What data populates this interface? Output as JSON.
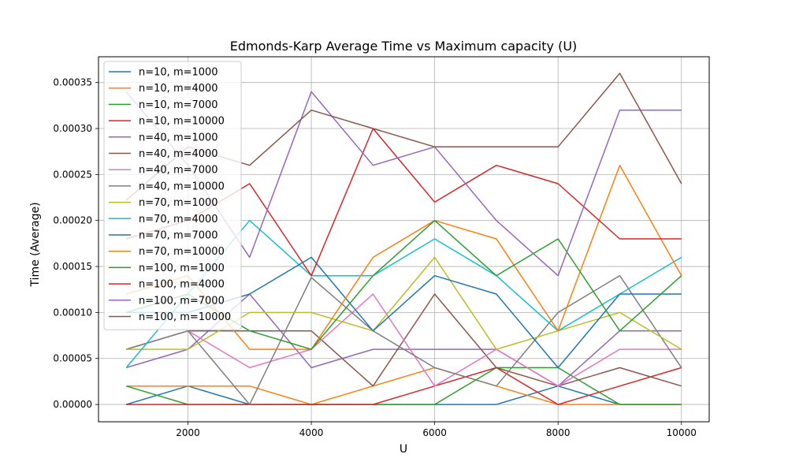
{
  "chart_data": {
    "type": "line",
    "title": "Edmonds-Karp Average Time vs Maximum capacity (U)",
    "xlabel": "U",
    "ylabel": "Time (Average)",
    "xlim": [
      550,
      10450
    ],
    "ylim": [
      -1.88e-05,
      0.000378
    ],
    "xticks": [
      2000,
      4000,
      6000,
      8000,
      10000
    ],
    "xtick_labels": [
      "2000",
      "4000",
      "6000",
      "8000",
      "10000"
    ],
    "yticks": [
      0,
      5e-05,
      0.0001,
      0.00015,
      0.0002,
      0.00025,
      0.0003,
      0.00035
    ],
    "ytick_labels": [
      "0.00000",
      "0.00005",
      "0.00010",
      "0.00015",
      "0.00020",
      "0.00025",
      "0.00030",
      "0.00035"
    ],
    "grid": true,
    "legend_position": "upper-left",
    "x": [
      1000,
      2000,
      3000,
      4000,
      5000,
      6000,
      7000,
      8000,
      9000,
      10000
    ],
    "series": [
      {
        "name": "n=10, m=1000",
        "color": "#1f77b4",
        "values": [
          0,
          2e-05,
          0,
          0,
          0,
          0,
          0,
          2e-05,
          0,
          0
        ]
      },
      {
        "name": "n=10, m=4000",
        "color": "#ff7f0e",
        "values": [
          2e-05,
          2e-05,
          2e-05,
          0,
          2e-05,
          4e-05,
          2e-05,
          0,
          0,
          0
        ]
      },
      {
        "name": "n=10, m=7000",
        "color": "#2ca02c",
        "values": [
          2e-05,
          0,
          0,
          0,
          0,
          0,
          4e-05,
          4e-05,
          0,
          0
        ]
      },
      {
        "name": "n=10, m=10000",
        "color": "#d62728",
        "values": [
          0,
          0,
          0,
          0,
          0,
          2e-05,
          4e-05,
          0,
          2e-05,
          4e-05
        ]
      },
      {
        "name": "n=40, m=1000",
        "color": "#9467bd",
        "values": [
          4e-05,
          6e-05,
          0.00012,
          4e-05,
          6e-05,
          6e-05,
          6e-05,
          2e-05,
          8e-05,
          8e-05
        ]
      },
      {
        "name": "n=40, m=4000",
        "color": "#8c564b",
        "values": [
          6e-05,
          8e-05,
          8e-05,
          8e-05,
          2e-05,
          0.00012,
          4e-05,
          2e-05,
          4e-05,
          2e-05
        ]
      },
      {
        "name": "n=40, m=7000",
        "color": "#e377c2",
        "values": [
          6e-05,
          8e-05,
          4e-05,
          6e-05,
          0.00012,
          2e-05,
          6e-05,
          2e-05,
          6e-05,
          6e-05
        ]
      },
      {
        "name": "n=40, m=10000",
        "color": "#7f7f7f",
        "values": [
          6e-05,
          8e-05,
          0,
          0.000138,
          8e-05,
          4e-05,
          2e-05,
          0.0001,
          0.00014,
          4e-05
        ]
      },
      {
        "name": "n=70, m=1000",
        "color": "#bcbd22",
        "values": [
          6e-05,
          6e-05,
          0.0001,
          0.0001,
          8e-05,
          0.00016,
          6e-05,
          8e-05,
          0.0001,
          6e-05
        ]
      },
      {
        "name": "n=70, m=4000",
        "color": "#17becf",
        "values": [
          4e-05,
          0.00012,
          0.0002,
          0.00014,
          0.00014,
          0.00018,
          0.00014,
          8e-05,
          0.00012,
          0.00016
        ]
      },
      {
        "name": "n=70, m=7000",
        "color": "#1f77b4",
        "values": [
          0.0001,
          0.0001,
          0.00012,
          0.00016,
          8e-05,
          0.00014,
          0.00012,
          4e-05,
          0.00012,
          0.00012
        ]
      },
      {
        "name": "n=70, m=10000",
        "color": "#ff7f0e",
        "values": [
          0.00012,
          0.00014,
          6e-05,
          6e-05,
          0.00016,
          0.0002,
          0.00018,
          8e-05,
          0.00026,
          0.00014
        ]
      },
      {
        "name": "n=100, m=1000",
        "color": "#2ca02c",
        "values": [
          0.0001,
          0.00012,
          8e-05,
          6e-05,
          0.00014,
          0.0002,
          0.00014,
          0.00018,
          8e-05,
          0.00014
        ]
      },
      {
        "name": "n=100, m=4000",
        "color": "#d62728",
        "values": [
          0.00018,
          0.0002,
          0.00024,
          0.00014,
          0.0003,
          0.00022,
          0.00026,
          0.00024,
          0.00018,
          0.00018
        ]
      },
      {
        "name": "n=100, m=7000",
        "color": "#9467bd",
        "values": [
          0.00034,
          0.00026,
          0.00016,
          0.00034,
          0.00026,
          0.00028,
          0.0002,
          0.00014,
          0.00032,
          0.00032
        ]
      },
      {
        "name": "n=100, m=10000",
        "color": "#8c564b",
        "values": [
          0.000222,
          0.00028,
          0.00026,
          0.00032,
          0.0003,
          0.00028,
          0.00028,
          0.00028,
          0.00036,
          0.00024
        ]
      }
    ]
  }
}
